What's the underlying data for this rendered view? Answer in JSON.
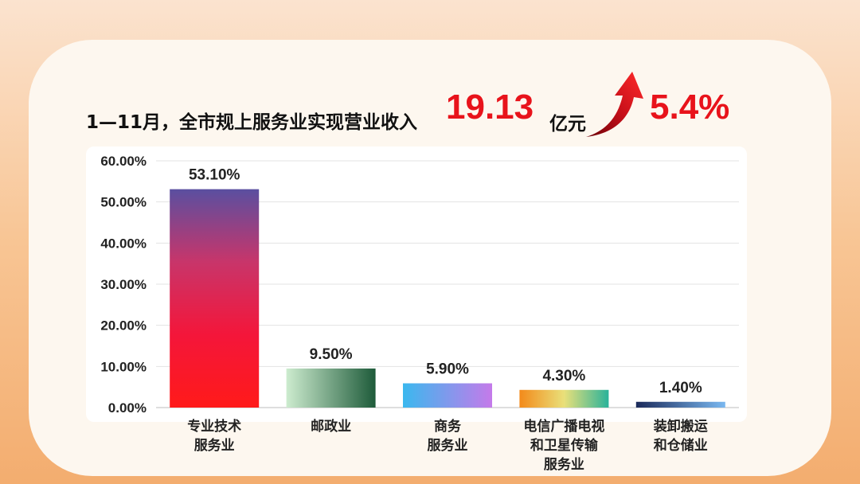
{
  "headline": {
    "prefix": "1—11月，全市规上服务业实现营业收入",
    "value": "19.13",
    "unit": "亿元",
    "growth": "5.4%",
    "arrow_icon": "red-upward-curved-arrow"
  },
  "colors": {
    "accent_red": "#e8131b",
    "background_top": "#fbe3cf",
    "background_bottom": "#f3ad6f",
    "card": "#fdf7ef"
  },
  "chart_data": {
    "type": "bar",
    "categories": [
      [
        "专业技术",
        "服务业"
      ],
      [
        "邮政业"
      ],
      [
        "商务",
        "服务业"
      ],
      [
        "电信广播电视",
        "和卫星传输",
        "服务业"
      ],
      [
        "装卸搬运",
        "和仓储业"
      ]
    ],
    "values": [
      53.1,
      9.5,
      5.9,
      4.3,
      1.4
    ],
    "data_labels": [
      "53.10%",
      "9.50%",
      "5.90%",
      "4.30%",
      "1.40%"
    ],
    "ylim": [
      0,
      60
    ],
    "yticks": [
      "0.00%",
      "10.00%",
      "20.00%",
      "30.00%",
      "40.00%",
      "50.00%",
      "60.00%"
    ],
    "grid": true,
    "bar_gradients": [
      [
        "#5a4fa0",
        "#c8356a",
        "#f4163a",
        "#ff1a1a"
      ],
      [
        "#cdeccf",
        "#1e5b3a"
      ],
      [
        "#3bb8ee",
        "#c57aea"
      ],
      [
        "#f38a1a",
        "#e9e07a",
        "#29b29a"
      ],
      [
        "#1b2a5a",
        "#7ab8f0"
      ]
    ]
  }
}
